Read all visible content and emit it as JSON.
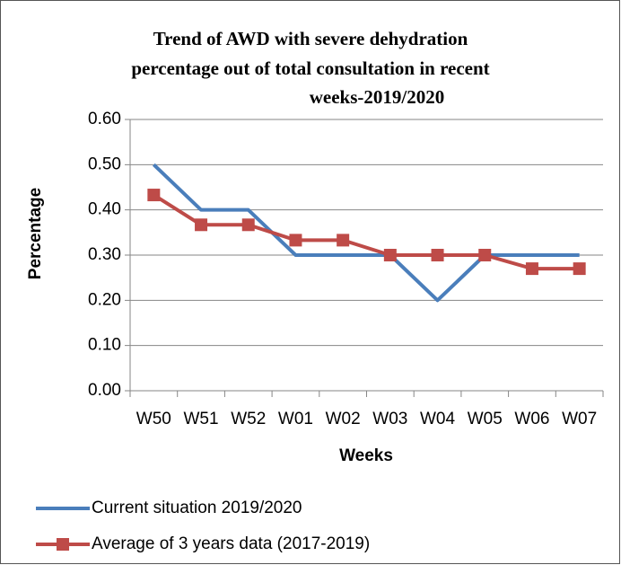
{
  "chart_data": {
    "type": "line",
    "title": [
      "Trend of AWD with severe dehydration",
      "percentage out of total consultation in recent",
      "weeks-2019/2020"
    ],
    "xlabel": "Weeks",
    "ylabel": "Percentage",
    "categories": [
      "W50",
      "W51",
      "W52",
      "W01",
      "W02",
      "W03",
      "W04",
      "W05",
      "W06",
      "W07"
    ],
    "series": [
      {
        "name": "Current situation 2019/2020",
        "color": "#4a7ebb",
        "marker": false,
        "values": [
          0.5,
          0.4,
          0.4,
          0.3,
          0.3,
          0.3,
          0.2,
          0.3,
          0.3,
          0.3
        ]
      },
      {
        "name": "Average of 3 years data (2017-2019)",
        "color": "#be4b48",
        "marker": true,
        "values": [
          0.433,
          0.367,
          0.367,
          0.333,
          0.333,
          0.3,
          0.3,
          0.3,
          0.27,
          0.27
        ]
      }
    ],
    "ylim": [
      0,
      0.6
    ],
    "yticks": [
      {
        "value": 0,
        "label": "0.00"
      },
      {
        "value": 0.1,
        "label": "0.10"
      },
      {
        "value": 0.2,
        "label": "0.20"
      },
      {
        "value": 0.3,
        "label": "0.30"
      },
      {
        "value": 0.4,
        "label": "0.40"
      },
      {
        "value": 0.5,
        "label": "0.50"
      },
      {
        "value": 0.6,
        "label": "0.60"
      }
    ],
    "grid": true,
    "legend": "bottom"
  }
}
